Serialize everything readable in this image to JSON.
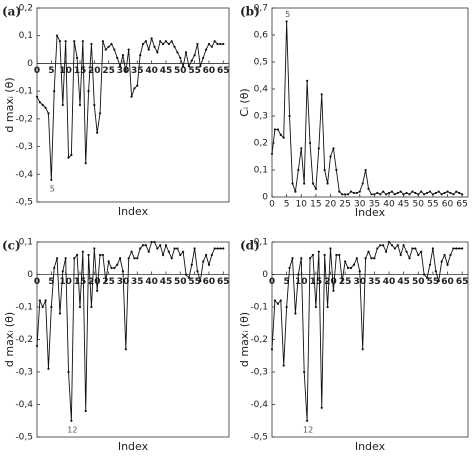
{
  "chart_data": [
    {
      "type": "line",
      "panel": "(a)",
      "ylabel": "d maxᵢ (θ)",
      "xlabel": "Index",
      "annotation": "5",
      "color": "#111111",
      "x": [
        0,
        1,
        2,
        3,
        4,
        5,
        6,
        7,
        8,
        9,
        10,
        11,
        12,
        13,
        14,
        15,
        16,
        17,
        18,
        19,
        20,
        21,
        22,
        23,
        24,
        25,
        26,
        27,
        28,
        29,
        30,
        31,
        32,
        33,
        34,
        35,
        36,
        37,
        38,
        39,
        40,
        41,
        42,
        43,
        44,
        45,
        46,
        47,
        48,
        49,
        50,
        51,
        52,
        53,
        54,
        55,
        56,
        57,
        58,
        59,
        60,
        61,
        62,
        63,
        64,
        65
      ],
      "values": [
        -0.12,
        -0.14,
        -0.15,
        -0.16,
        -0.18,
        -0.42,
        -0.1,
        0.1,
        0.08,
        -0.15,
        0.08,
        -0.34,
        -0.33,
        0.08,
        0.02,
        -0.15,
        0.08,
        -0.36,
        -0.1,
        0.07,
        -0.15,
        -0.25,
        -0.18,
        0.08,
        0.05,
        0.06,
        0.07,
        0.05,
        0.02,
        -0.01,
        0.03,
        -0.03,
        0.05,
        -0.12,
        -0.09,
        -0.08,
        0.03,
        0.07,
        0.08,
        0.05,
        0.09,
        0.06,
        0.04,
        0.08,
        0.07,
        0.08,
        0.07,
        0.08,
        0.06,
        0.04,
        0.02,
        -0.01,
        0.04,
        -0.01,
        0.01,
        0.03,
        0.07,
        -0.01,
        0.02,
        0.05,
        0.07,
        0.06,
        0.08,
        0.07,
        0.07,
        0.07
      ],
      "xlim": [
        0,
        67
      ],
      "xticks": [
        0,
        5,
        10,
        15,
        20,
        25,
        30,
        35,
        40,
        45,
        50,
        55,
        60,
        65
      ],
      "ylim": [
        -0.5,
        0.2
      ],
      "yticks": [
        {
          "value": -0.5,
          "label": "-0,5"
        },
        {
          "value": -0.4,
          "label": "-0,4"
        },
        {
          "value": -0.3,
          "label": "-0,3"
        },
        {
          "value": -0.2,
          "label": "-0,2"
        },
        {
          "value": -0.1,
          "label": "-0,1"
        },
        0,
        {
          "value": 0.1,
          "label": "0,1"
        },
        {
          "value": 0.2,
          "label": "0,2"
        }
      ]
    },
    {
      "type": "line",
      "panel": "(b)",
      "ylabel": "Cᵢ (θ)",
      "xlabel": "Index",
      "annotation": "5",
      "color": "#111111",
      "x": [
        0,
        1,
        2,
        3,
        4,
        5,
        6,
        7,
        8,
        9,
        10,
        11,
        12,
        13,
        14,
        15,
        16,
        17,
        18,
        19,
        20,
        21,
        22,
        23,
        24,
        25,
        26,
        27,
        28,
        29,
        30,
        31,
        32,
        33,
        34,
        35,
        36,
        37,
        38,
        39,
        40,
        41,
        42,
        43,
        44,
        45,
        46,
        47,
        48,
        49,
        50,
        51,
        52,
        53,
        54,
        55,
        56,
        57,
        58,
        59,
        60,
        61,
        62,
        63,
        64,
        65
      ],
      "values": [
        0.16,
        0.25,
        0.25,
        0.23,
        0.22,
        0.65,
        0.3,
        0.05,
        0.02,
        0.1,
        0.18,
        0.05,
        0.43,
        0.2,
        0.05,
        0.03,
        0.18,
        0.38,
        0.1,
        0.05,
        0.15,
        0.18,
        0.1,
        0.02,
        0.01,
        0.01,
        0.01,
        0.02,
        0.015,
        0.015,
        0.02,
        0.05,
        0.1,
        0.03,
        0.01,
        0.01,
        0.015,
        0.01,
        0.02,
        0.01,
        0.015,
        0.02,
        0.01,
        0.015,
        0.02,
        0.01,
        0.015,
        0.01,
        0.02,
        0.015,
        0.01,
        0.02,
        0.01,
        0.015,
        0.02,
        0.01,
        0.015,
        0.02,
        0.01,
        0.015,
        0.02,
        0.015,
        0.01,
        0.02,
        0.015,
        0.01
      ],
      "xlim": [
        0,
        67
      ],
      "xticks": [
        0,
        5,
        10,
        15,
        20,
        25,
        30,
        35,
        40,
        45,
        50,
        55,
        60,
        65
      ],
      "ylim": [
        0,
        0.7
      ],
      "yticks": [
        0,
        {
          "value": 0.1,
          "label": "0,1"
        },
        {
          "value": 0.2,
          "label": "0,2"
        },
        {
          "value": 0.3,
          "label": "0,3"
        },
        {
          "value": 0.4,
          "label": "0,4"
        },
        {
          "value": 0.5,
          "label": "0,5"
        },
        {
          "value": 0.6,
          "label": "0,6"
        },
        {
          "value": 0.7,
          "label": "0,7"
        }
      ]
    },
    {
      "type": "line",
      "panel": "(c)",
      "ylabel": "d maxᵢ (θ)",
      "xlabel": "Index",
      "annotation": "12",
      "color": "#111111",
      "x": [
        0,
        1,
        2,
        3,
        4,
        5,
        6,
        7,
        8,
        9,
        10,
        11,
        12,
        13,
        14,
        15,
        16,
        17,
        18,
        19,
        20,
        21,
        22,
        23,
        24,
        25,
        26,
        27,
        28,
        29,
        30,
        31,
        32,
        33,
        34,
        35,
        36,
        37,
        38,
        39,
        40,
        41,
        42,
        43,
        44,
        45,
        46,
        47,
        48,
        49,
        50,
        51,
        52,
        53,
        54,
        55,
        56,
        57,
        58,
        59,
        60,
        61,
        62,
        63,
        64,
        65
      ],
      "values": [
        -0.22,
        -0.08,
        -0.1,
        -0.08,
        -0.29,
        -0.1,
        0.02,
        0.05,
        -0.12,
        0.01,
        0.05,
        -0.3,
        -0.45,
        0.05,
        0.06,
        -0.1,
        0.07,
        -0.42,
        0.06,
        -0.1,
        0.08,
        -0.05,
        0.06,
        0.06,
        -0.02,
        0.04,
        0.02,
        0.02,
        0.03,
        0.05,
        0.01,
        -0.23,
        0.05,
        0.07,
        0.05,
        0.05,
        0.08,
        0.09,
        0.09,
        0.07,
        0.1,
        0.1,
        0.08,
        0.09,
        0.06,
        0.09,
        0.07,
        0.05,
        0.08,
        0.08,
        0.06,
        0.07,
        0.0,
        -0.01,
        0.03,
        0.08,
        0.01,
        -0.02,
        0.04,
        0.06,
        0.03,
        0.06,
        0.08,
        0.08,
        0.08,
        0.08
      ],
      "xlim": [
        0,
        67
      ],
      "xticks": [
        0,
        5,
        10,
        15,
        20,
        25,
        30,
        35,
        40,
        45,
        50,
        55,
        60,
        65
      ],
      "ylim": [
        -0.5,
        0.1
      ],
      "yticks": [
        {
          "value": -0.5,
          "label": "-0,5"
        },
        {
          "value": -0.4,
          "label": "-0,4"
        },
        {
          "value": -0.3,
          "label": "-0,3"
        },
        {
          "value": -0.2,
          "label": "-0,2"
        },
        {
          "value": -0.1,
          "label": "-0,1"
        },
        0,
        {
          "value": 0.1,
          "label": "0,1"
        }
      ]
    },
    {
      "type": "line",
      "panel": "(d)",
      "ylabel": "d maxᵢ (θ)",
      "xlabel": "Index",
      "annotation": "12",
      "color": "#111111",
      "x": [
        0,
        1,
        2,
        3,
        4,
        5,
        6,
        7,
        8,
        9,
        10,
        11,
        12,
        13,
        14,
        15,
        16,
        17,
        18,
        19,
        20,
        21,
        22,
        23,
        24,
        25,
        26,
        27,
        28,
        29,
        30,
        31,
        32,
        33,
        34,
        35,
        36,
        37,
        38,
        39,
        40,
        41,
        42,
        43,
        44,
        45,
        46,
        47,
        48,
        49,
        50,
        51,
        52,
        53,
        54,
        55,
        56,
        57,
        58,
        59,
        60,
        61,
        62,
        63,
        64,
        65
      ],
      "values": [
        -0.23,
        -0.08,
        -0.09,
        -0.08,
        -0.28,
        -0.1,
        0.02,
        0.05,
        -0.12,
        0.0,
        0.05,
        -0.3,
        -0.45,
        0.05,
        0.06,
        -0.1,
        0.07,
        -0.41,
        0.06,
        -0.1,
        0.08,
        -0.05,
        0.06,
        0.06,
        -0.02,
        0.04,
        0.02,
        0.02,
        0.03,
        0.05,
        0.01,
        -0.23,
        0.05,
        0.07,
        0.05,
        0.05,
        0.08,
        0.09,
        0.09,
        0.07,
        0.1,
        0.09,
        0.08,
        0.09,
        0.06,
        0.09,
        0.07,
        0.05,
        0.08,
        0.08,
        0.06,
        0.07,
        0.0,
        -0.01,
        0.03,
        0.08,
        0.01,
        -0.02,
        0.04,
        0.06,
        0.03,
        0.06,
        0.08,
        0.08,
        0.08,
        0.08
      ],
      "xlim": [
        0,
        67
      ],
      "xticks": [
        0,
        5,
        10,
        15,
        20,
        25,
        30,
        35,
        40,
        45,
        50,
        55,
        60,
        65
      ],
      "ylim": [
        -0.5,
        0.1
      ],
      "yticks": [
        {
          "value": -0.5,
          "label": "-0,5"
        },
        {
          "value": -0.4,
          "label": "-0,4"
        },
        {
          "value": -0.3,
          "label": "-0,3"
        },
        {
          "value": -0.2,
          "label": "-0,2"
        },
        {
          "value": -0.1,
          "label": "-0,1"
        },
        0,
        {
          "value": 0.1,
          "label": "0,1"
        }
      ]
    }
  ]
}
